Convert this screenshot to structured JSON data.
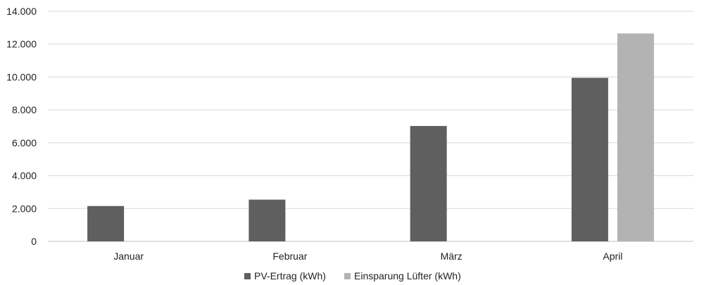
{
  "chart_data": {
    "type": "bar",
    "categories": [
      "Januar",
      "Februar",
      "März",
      "April"
    ],
    "series": [
      {
        "name": "PV-Ertrag (kWh)",
        "values": [
          2150,
          2540,
          7020,
          9950
        ],
        "color": "#5f5f5f"
      },
      {
        "name": "Einsparung Lüfter (kWh)",
        "values": [
          null,
          null,
          null,
          12650
        ],
        "color": "#b3b3b3"
      }
    ],
    "ylim": [
      0,
      14000
    ],
    "yticks": [
      "0",
      "2.000",
      "4.000",
      "6.000",
      "8.000",
      "10.000",
      "12.000",
      "14.000"
    ],
    "grid": true,
    "legend_position": "bottom"
  }
}
